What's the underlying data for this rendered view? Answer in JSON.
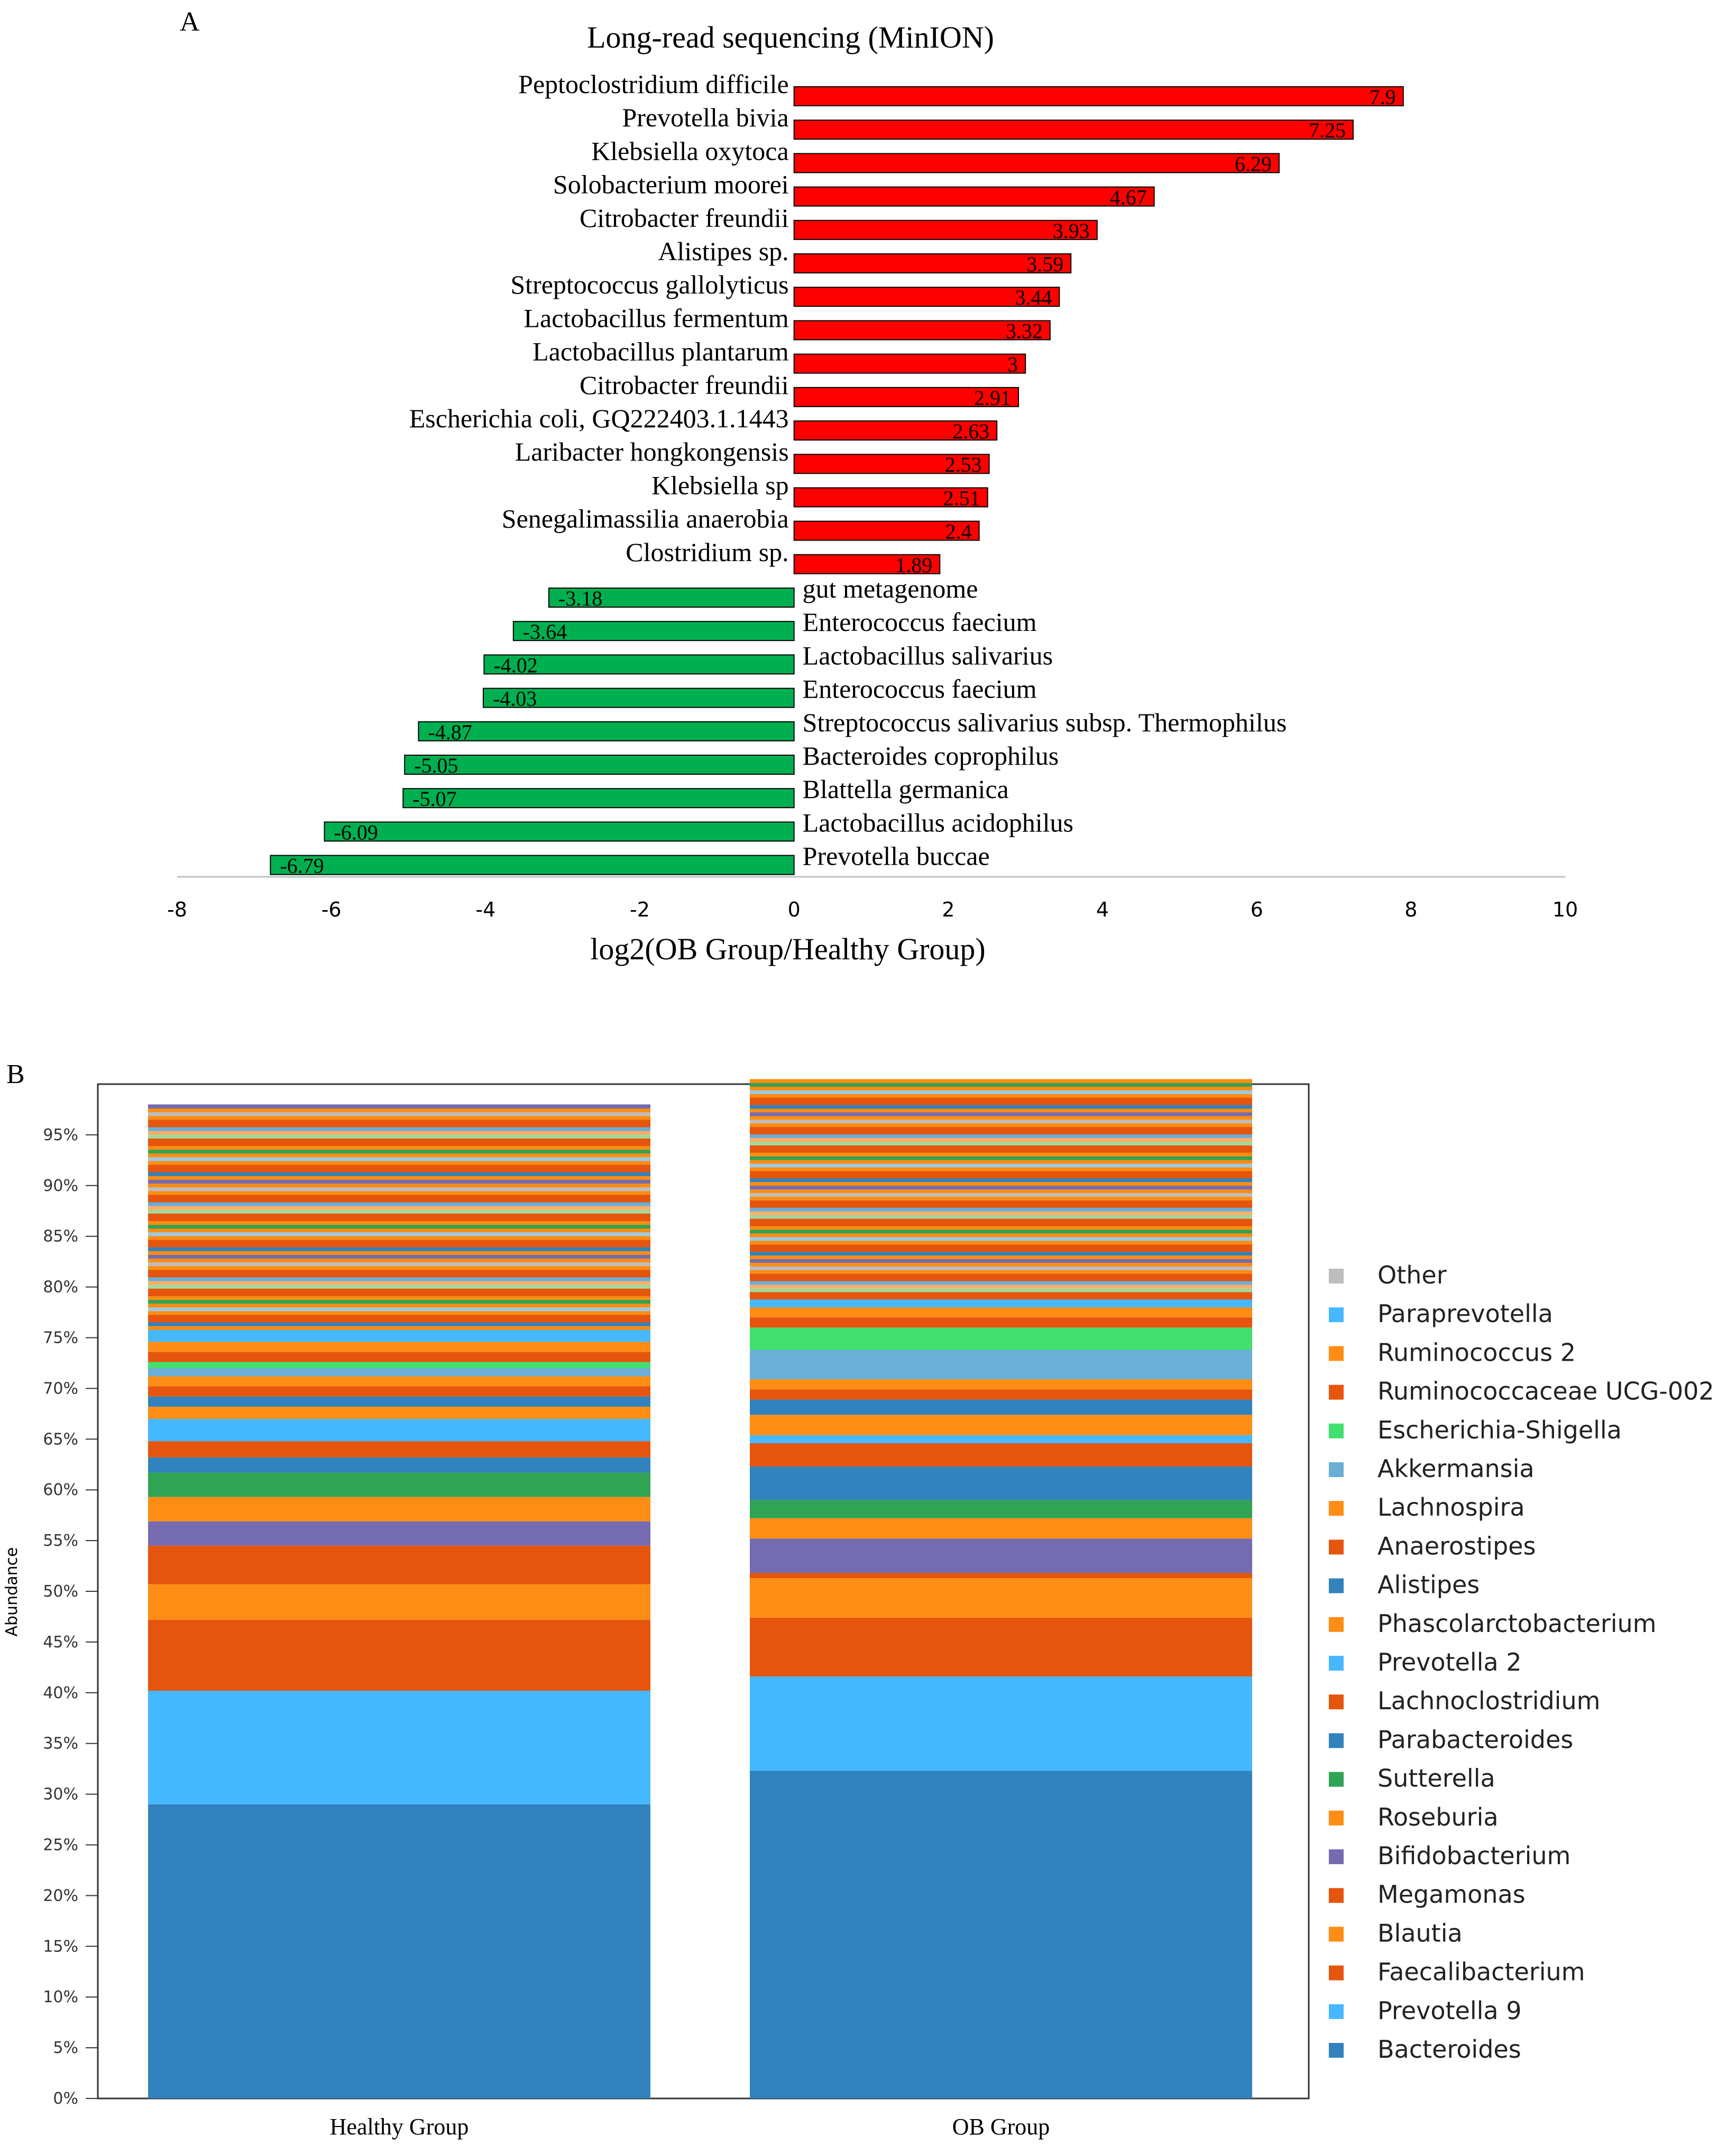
{
  "chart_data": [
    {
      "panel_label": "A",
      "type": "bar",
      "orientation": "horizontal",
      "title": "Long-read sequencing (MinION)",
      "xlabel": "log2(OB  Group/Healthy  Group)",
      "ylabel": "",
      "xlim": [
        -8,
        10
      ],
      "xticks": [
        -8,
        -6,
        -4,
        -2,
        0,
        2,
        4,
        6,
        8,
        10
      ],
      "categories": [
        "Peptoclostridium difficile",
        "Prevotella bivia",
        "Klebsiella oxytoca",
        "Solobacterium moorei",
        "Citrobacter freundii",
        "Alistipes sp.",
        "Streptococcus gallolyticus",
        "Lactobacillus fermentum",
        "Lactobacillus plantarum",
        "Citrobacter freundii",
        "Escherichia coli, GQ222403.1.1443",
        "Laribacter hongkongensis",
        "Klebsiella sp",
        "Senegalimassilia anaerobia",
        "Clostridium sp.",
        "gut metagenome",
        "Enterococcus faecium",
        "Lactobacillus salivarius",
        "Enterococcus faecium",
        "Streptococcus salivarius subsp. Thermophilus",
        "Bacteroides coprophilus",
        "Blattella germanica",
        "Lactobacillus acidophilus",
        "Prevotella buccae"
      ],
      "values": [
        7.9,
        7.25,
        6.29,
        4.67,
        3.93,
        3.59,
        3.44,
        3.32,
        3,
        2.91,
        2.63,
        2.53,
        2.51,
        2.4,
        1.89,
        -3.18,
        -3.64,
        -4.02,
        -4.03,
        -4.87,
        -5.05,
        -5.07,
        -6.09,
        -6.79
      ],
      "value_labels": [
        "7.9",
        "7.25",
        "6.29",
        "4.67",
        "3.93",
        "3.59",
        "3.44",
        "3.32",
        "3",
        "2.91",
        "2.63",
        "2.53",
        "2.51",
        "2.4",
        "1.89",
        "-3.18",
        "-3.64",
        "-4.02",
        "-4.03",
        "-4.87",
        "-5.05",
        "-5.07",
        "-6.09",
        "-6.79"
      ],
      "colors": {
        "positive": "#ff0000",
        "negative": "#00b050"
      }
    },
    {
      "panel_label": "B",
      "type": "bar",
      "stacked": true,
      "title": "",
      "xlabel": "",
      "ylabel": "Abundance",
      "ylim": [
        0,
        100
      ],
      "yticks": [
        "0%",
        "5%",
        "10%",
        "15%",
        "20%",
        "25%",
        "30%",
        "35%",
        "40%",
        "45%",
        "50%",
        "55%",
        "60%",
        "65%",
        "70%",
        "75%",
        "80%",
        "85%",
        "90%",
        "95%"
      ],
      "categories": [
        "Healthy Group",
        "OB Group"
      ],
      "legend": [
        "Other",
        "Paraprevotella",
        "Ruminococcus 2",
        "Ruminococcaceae UCG-002",
        "Escherichia-Shigella",
        "Akkermansia",
        "Lachnospira",
        "Anaerostipes",
        "Alistipes",
        "Phascolarctobacterium",
        "Prevotella 2",
        "Lachnoclostridium",
        "Parabacteroides",
        "Sutterella",
        "Roseburia",
        "Bifidobacterium",
        "Megamonas",
        "Blautia",
        "Faecalibacterium",
        "Prevotella 9",
        "Bacteroides"
      ],
      "series": [
        {
          "name": "Bacteroides",
          "color": "#3182bd",
          "values": [
            29,
            32.3
          ]
        },
        {
          "name": "Prevotella 9",
          "color": "#45b8ff",
          "values": [
            11.2,
            9.3
          ]
        },
        {
          "name": "Faecalibacterium",
          "color": "#e6550d",
          "values": [
            7,
            5.8
          ]
        },
        {
          "name": "Blautia",
          "color": "#fd8d14",
          "values": [
            3.5,
            3.9
          ]
        },
        {
          "name": "Megamonas",
          "color": "#e6550d",
          "values": [
            3.8,
            0.5
          ]
        },
        {
          "name": "Bifidobacterium",
          "color": "#756bb1",
          "values": [
            2.4,
            3.4
          ]
        },
        {
          "name": "Roseburia",
          "color": "#fd8d14",
          "values": [
            2.4,
            2.0
          ]
        },
        {
          "name": "Sutterella",
          "color": "#31a354",
          "values": [
            2.4,
            1.8
          ]
        },
        {
          "name": "Parabacteroides",
          "color": "#3182bd",
          "values": [
            1.5,
            3.3
          ]
        },
        {
          "name": "Lachnoclostridium",
          "color": "#e6550d",
          "values": [
            1.6,
            2.3
          ]
        },
        {
          "name": "Prevotella 2",
          "color": "#45b8ff",
          "values": [
            2.2,
            0.8
          ]
        },
        {
          "name": "Phascolarctobacterium",
          "color": "#fd8d14",
          "values": [
            1.2,
            2.0
          ]
        },
        {
          "name": "Alistipes",
          "color": "#3182bd",
          "values": [
            1.0,
            1.5
          ]
        },
        {
          "name": "Anaerostipes",
          "color": "#e6550d",
          "values": [
            1.0,
            1.0
          ]
        },
        {
          "name": "Lachnospira",
          "color": "#fd8d14",
          "values": [
            1.0,
            1.0
          ]
        },
        {
          "name": "Akkermansia",
          "color": "#6baed6",
          "values": [
            0.8,
            2.9
          ]
        },
        {
          "name": "Escherichia-Shigella",
          "color": "#41e06f",
          "values": [
            0.6,
            2.2
          ]
        },
        {
          "name": "Ruminococcaceae UCG-002",
          "color": "#e6550d",
          "values": [
            1.0,
            1.0
          ]
        },
        {
          "name": "Ruminococcus 2",
          "color": "#fd8d14",
          "values": [
            1.0,
            1.0
          ]
        },
        {
          "name": "Paraprevotella",
          "color": "#45b8ff",
          "values": [
            1.2,
            0.8
          ]
        },
        {
          "name": "Other",
          "color": "#bdbdbd",
          "values": [
            22.2,
            21.7
          ]
        }
      ]
    }
  ]
}
